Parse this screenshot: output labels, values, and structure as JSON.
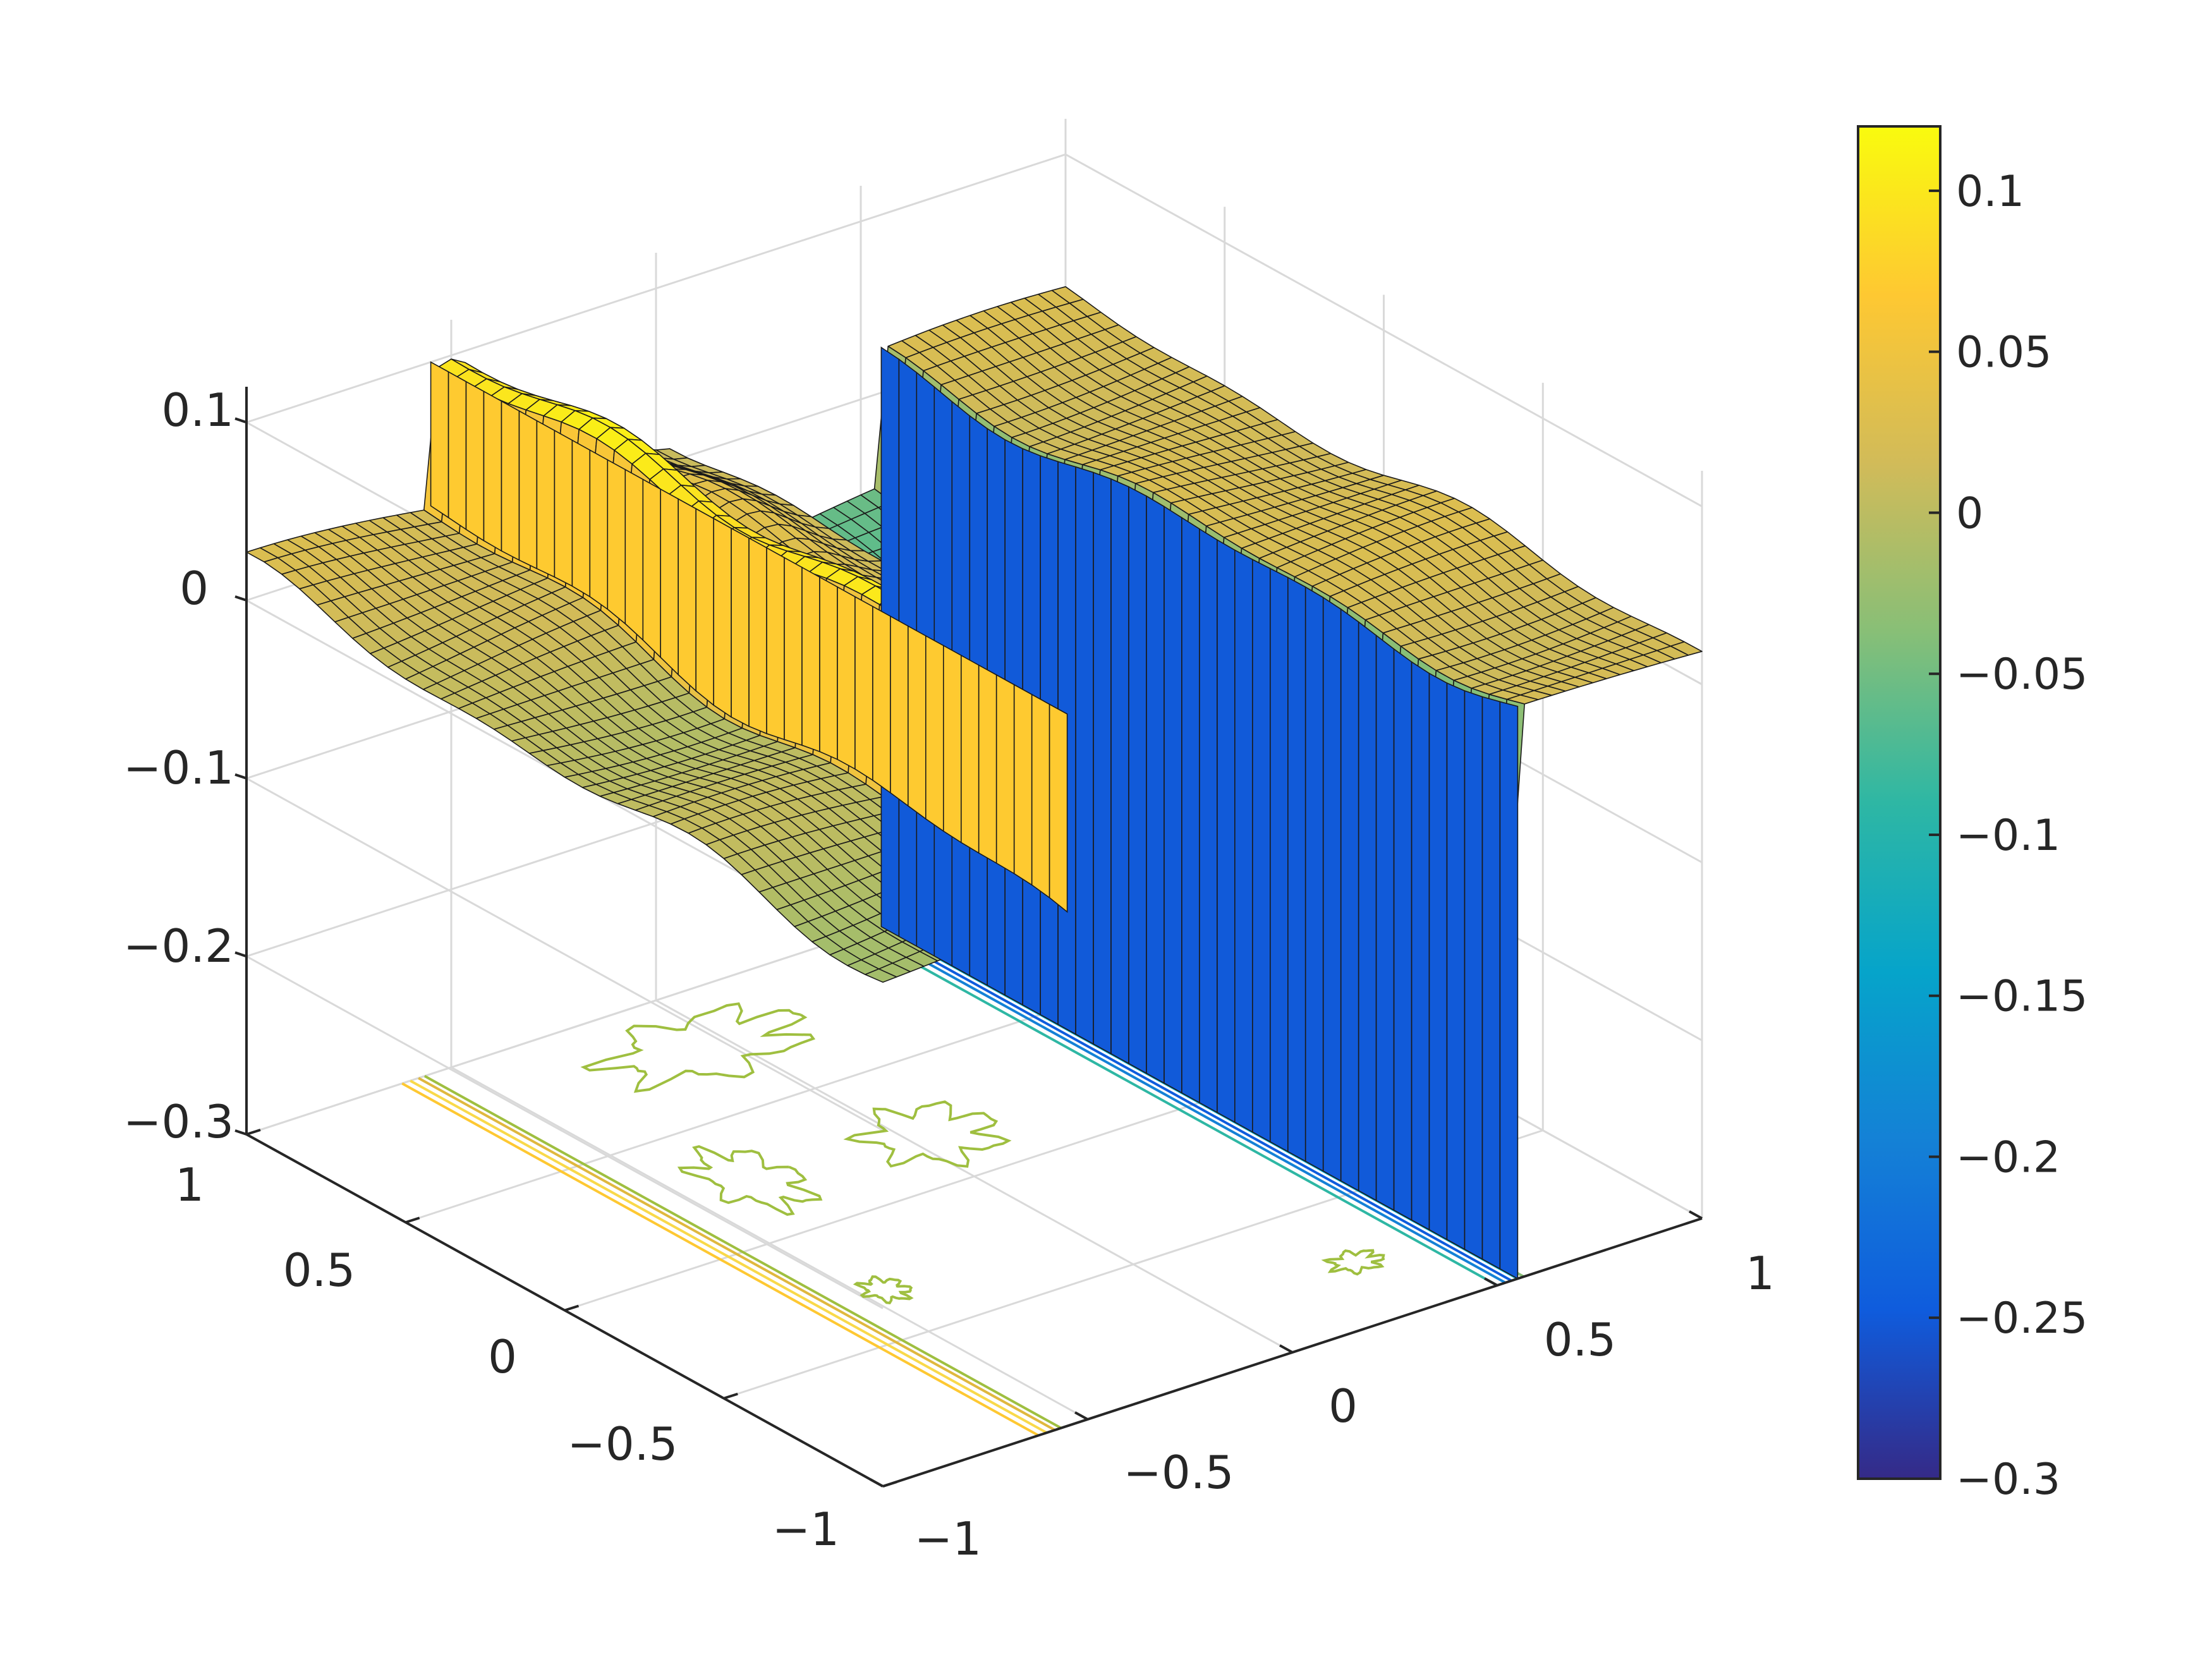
{
  "chart_data": {
    "type": "surface",
    "view": "3d",
    "xlim": [
      -1,
      1
    ],
    "ylim": [
      -1,
      1
    ],
    "zlim": [
      -0.3,
      0.12
    ],
    "x_ticks": [
      "-1",
      "-0.5",
      "0",
      "0.5",
      "1"
    ],
    "y_ticks": [
      "-1",
      "-0.5",
      "0",
      "0.5",
      "1"
    ],
    "z_ticks": [
      "-0.3",
      "-0.2",
      "-0.1",
      "0",
      "0.1"
    ],
    "z_tick_values": [
      -0.3,
      -0.2,
      -0.1,
      0,
      0.1
    ],
    "grid": true,
    "contour_projection": true,
    "colormap": "parula",
    "colormap_stops": [
      "#352a87",
      "#0f5cdd",
      "#1481d6",
      "#06a4ca",
      "#2eb7a4",
      "#87bf77",
      "#d1bb59",
      "#fec832",
      "#f9fb0e"
    ],
    "colorbar": {
      "ticks": [
        "0.1",
        "0.05",
        "0",
        "-0.05",
        "-0.1",
        "-0.15",
        "-0.2",
        "-0.25",
        "-0.3"
      ],
      "tick_values": [
        0.1,
        0.05,
        0,
        -0.05,
        -0.1,
        -0.15,
        -0.2,
        -0.25,
        -0.3
      ],
      "limits": [
        -0.3,
        0.12
      ]
    },
    "regions": [
      {
        "x_range": [
          -1,
          -0.55
        ],
        "z": 0.0
      },
      {
        "x_range": [
          -0.55,
          -0.45
        ],
        "z": 0.1
      },
      {
        "x_range": [
          -0.45,
          0.05
        ],
        "z": 0.0
      },
      {
        "x_range": [
          0.05,
          0.55
        ],
        "z": -0.07
      },
      {
        "x_range": [
          0.55,
          1.0
        ],
        "z": 0.02
      }
    ],
    "steps": [
      {
        "x": -0.5,
        "z_low": 0.0,
        "z_high": 0.1
      },
      {
        "x": 0.55,
        "z_low": -0.3,
        "z_high": 0.02
      }
    ]
  }
}
